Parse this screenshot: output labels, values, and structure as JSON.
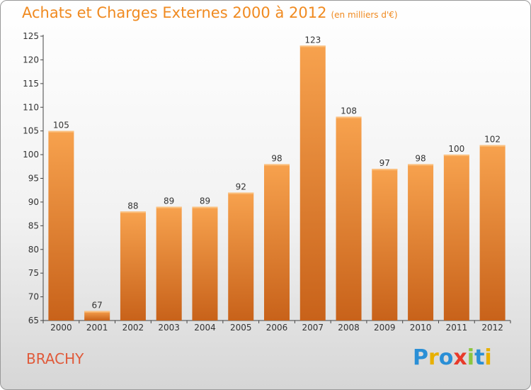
{
  "header": {
    "title": "Achats et Charges Externes 2000 à 2012",
    "subtitle": "(en milliers d'€)"
  },
  "footer": {
    "commune": "BRACHY",
    "logo_text": "Proxiti"
  },
  "colors": {
    "bar_top": "#f7a24e",
    "bar_bottom": "#c8621a",
    "title": "#f08a20",
    "commune": "#e05a3a"
  },
  "chart_data": {
    "type": "bar",
    "title": "Achats et Charges Externes 2000 à 2012",
    "subtitle": "(en milliers d'€)",
    "categories": [
      "2000",
      "2001",
      "2002",
      "2003",
      "2004",
      "2005",
      "2006",
      "2007",
      "2008",
      "2009",
      "2010",
      "2011",
      "2012"
    ],
    "values": [
      105,
      67,
      88,
      89,
      89,
      92,
      98,
      123,
      108,
      97,
      98,
      100,
      102
    ],
    "ylim": [
      65,
      125
    ],
    "yticks": [
      65,
      70,
      75,
      80,
      85,
      90,
      95,
      100,
      105,
      110,
      115,
      120,
      125
    ],
    "grid": false,
    "legend": "none",
    "xlabel": "",
    "ylabel": ""
  }
}
